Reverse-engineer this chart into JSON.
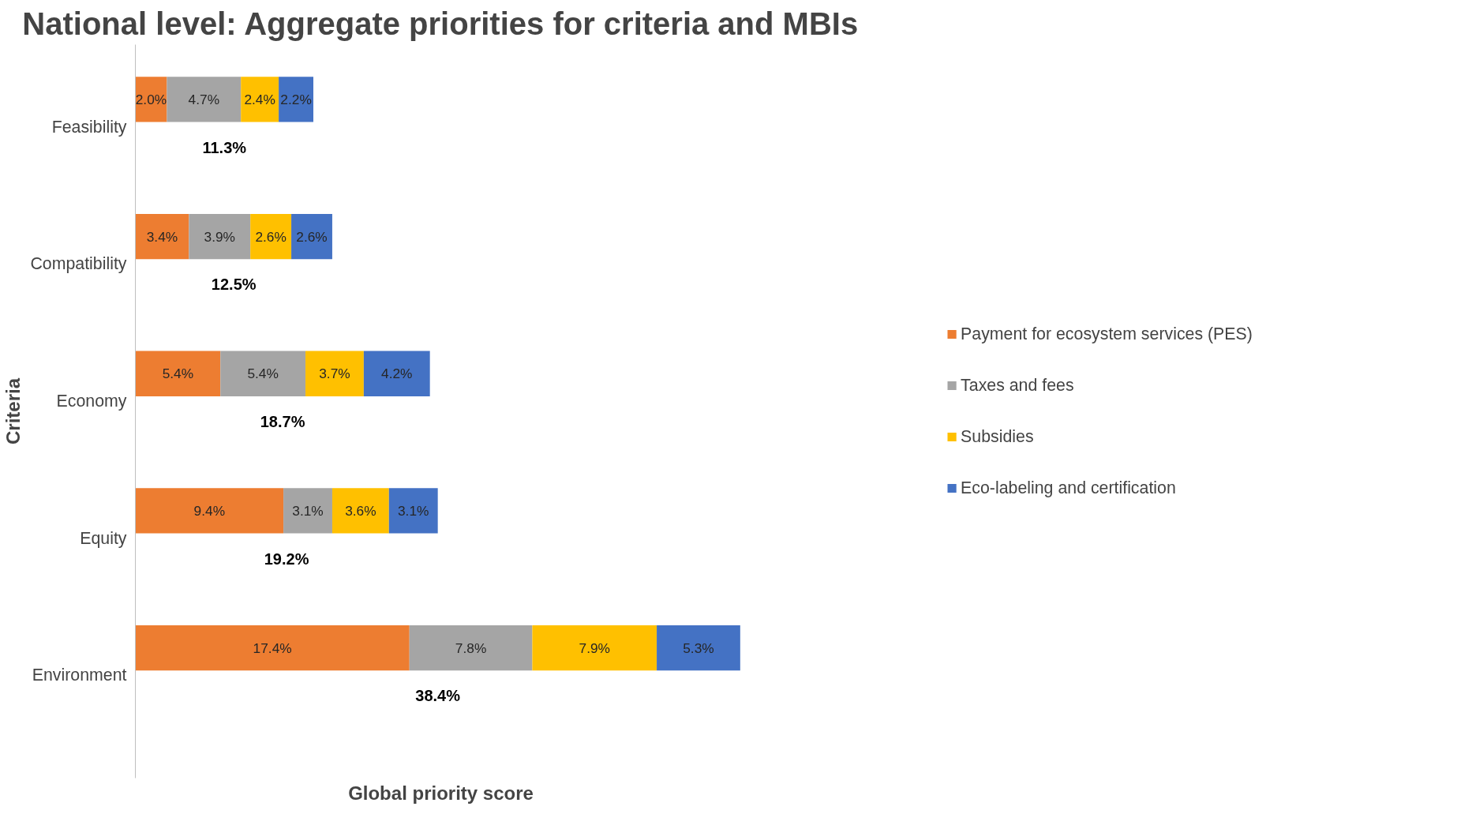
{
  "chart_data": {
    "type": "bar",
    "orientation": "horizontal",
    "stacked": true,
    "title": "National level: Aggregate priorities for criteria and MBIs",
    "xlabel": "Global priority score",
    "ylabel": "Criteria",
    "categories": [
      "Feasibility",
      "Compatibility",
      "Economy",
      "Equity",
      "Environment"
    ],
    "series": [
      {
        "name": "Payment for ecosystem services (PES)",
        "color": "#ed7d31",
        "values": [
          2.0,
          3.4,
          5.4,
          9.4,
          17.4
        ],
        "value_labels": [
          "2.0%",
          "3.4%",
          "5.4%",
          "9.4%",
          "17.4%"
        ]
      },
      {
        "name": "Taxes and fees",
        "color": "#a5a5a5",
        "values": [
          4.7,
          3.9,
          5.4,
          3.1,
          7.8
        ],
        "value_labels": [
          "4.7%",
          "3.9%",
          "5.4%",
          "3.1%",
          "7.8%"
        ]
      },
      {
        "name": "Subsidies",
        "color": "#ffc000",
        "values": [
          2.4,
          2.6,
          3.7,
          3.6,
          7.9
        ],
        "value_labels": [
          "2.4%",
          "2.6%",
          "3.7%",
          "3.6%",
          "7.9%"
        ]
      },
      {
        "name": "Eco-labeling and certification",
        "color": "#4472c4",
        "values": [
          2.2,
          2.6,
          4.2,
          3.1,
          5.3
        ],
        "value_labels": [
          "2.2%",
          "2.6%",
          "4.2%",
          "3.1%",
          "5.3%"
        ]
      }
    ],
    "totals": [
      "11.3%",
      "12.5%",
      "18.7%",
      "19.2%",
      "38.4%"
    ],
    "legend": "right",
    "grid": false,
    "tick_labels": "y"
  }
}
